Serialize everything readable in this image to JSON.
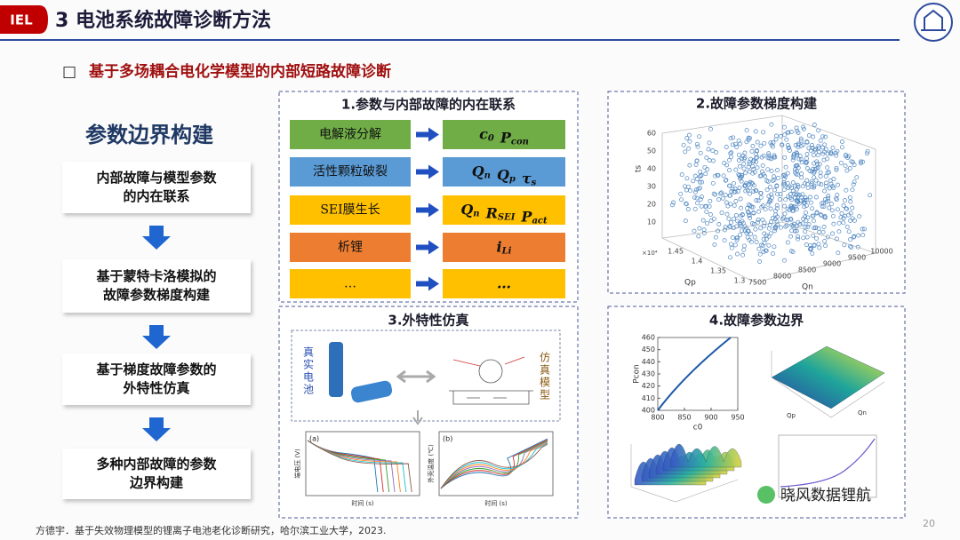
{
  "header": {
    "badge": "IEL",
    "title": "3 电池系统故障诊断方法"
  },
  "subtitle": {
    "bullet": "□",
    "text": "基于多场耦合电化学模型的内部短路故障诊断"
  },
  "flow": {
    "title": "参数边界构建",
    "steps": [
      [
        "内部故障与模型参数",
        "的内在联系"
      ],
      [
        "基于蒙特卡洛模拟的",
        "故障参数梯度构建"
      ],
      [
        "基于梯度故障参数的",
        "外特性仿真"
      ],
      [
        "多种内部故障的参数",
        "边界构建"
      ]
    ]
  },
  "panel1": {
    "title": "1.参数与内部故障的内在联系",
    "rows": [
      {
        "cause": "电解液分解",
        "params": [
          {
            "sym": "c",
            "sub": "0"
          },
          {
            "sym": "P",
            "sub": "con"
          }
        ]
      },
      {
        "cause": "活性颗粒破裂",
        "params": [
          {
            "sym": "Q",
            "sub": "n"
          },
          {
            "sym": "Q",
            "sub": "p"
          },
          {
            "sym": "τ",
            "sub": "s"
          }
        ]
      },
      {
        "cause": "SEI膜生长",
        "params": [
          {
            "sym": "Q",
            "sub": "n"
          },
          {
            "sym": "R",
            "sub": "SEI"
          },
          {
            "sym": "P",
            "sub": "act"
          }
        ]
      },
      {
        "cause": "析锂",
        "params": [
          {
            "sym": "i",
            "sub": "Li"
          }
        ]
      },
      {
        "cause": "…",
        "params": [
          {
            "sym": "…"
          }
        ]
      }
    ]
  },
  "panel2": {
    "title": "2.故障参数梯度构建",
    "z_label": "ts",
    "z_ticks": [
      10,
      20,
      30,
      40,
      50,
      60
    ],
    "x_label": "Qp",
    "x_exponent": "×10⁴",
    "x_ticks": [
      1.3,
      1.35,
      1.4,
      1.45
    ],
    "y_label": "Qn",
    "y_ticks": [
      7500,
      8000,
      8500,
      9000,
      9500,
      10000
    ]
  },
  "panel3": {
    "title": "3.外特性仿真",
    "real_label": "真实电池",
    "model_label": "仿真模型",
    "plot_a": {
      "tag": "(a)",
      "ylabel": "端电压 (V)",
      "xlabel": "时间 (s)"
    },
    "plot_b": {
      "tag": "(b)",
      "ylabel": "外壳温度 (℃)",
      "xlabel": "时间 (s)"
    }
  },
  "panel4": {
    "title": "4.故障参数边界",
    "plot": {
      "xlabel": "c0",
      "ylabel": "Pcon",
      "xticks": [
        800,
        850,
        900,
        950
      ],
      "yticks": [
        400,
        410,
        420,
        430,
        440,
        450,
        460
      ]
    },
    "surface_x": "Qp",
    "surface_y": "Qn"
  },
  "footer": {
    "citation": "方德宇．基于失效物理模型的锂离子电池老化诊断研究，哈尔滨工业大学，2023.",
    "page": "20",
    "watermark": "晓风数据锂航"
  }
}
